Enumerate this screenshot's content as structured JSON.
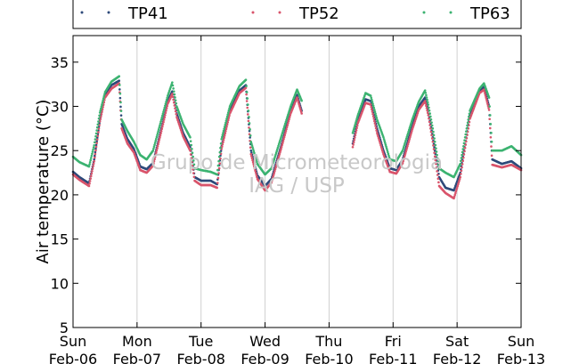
{
  "watermark": {
    "line1": "Grupo de Micrometeorologia",
    "line2": "IAG / USP"
  },
  "chart_data": {
    "type": "scatter",
    "title": "",
    "xlabel": "",
    "ylabel": "Air temperature (°C)",
    "ylim": [
      5,
      38
    ],
    "yticks": [
      5,
      10,
      15,
      20,
      25,
      30,
      35
    ],
    "xlim_days": [
      0,
      7
    ],
    "xticks": [
      {
        "day": "Sun",
        "date": "Feb-06"
      },
      {
        "day": "Mon",
        "date": "Feb-07"
      },
      {
        "day": "Tue",
        "date": "Feb-08"
      },
      {
        "day": "Wed",
        "date": "Feb-09"
      },
      {
        "day": "Thu",
        "date": "Feb-10"
      },
      {
        "day": "Fri",
        "date": "Feb-11"
      },
      {
        "day": "Sat",
        "date": "Feb-12"
      },
      {
        "day": "Sun",
        "date": "Feb-13"
      }
    ],
    "grid": "vertical",
    "legend_position": "top",
    "series": [
      {
        "name": "TP41",
        "color": "#2e4a7a",
        "points": [
          [
            0.0,
            22.6
          ],
          [
            0.1,
            22.0
          ],
          [
            0.25,
            21.3
          ],
          [
            0.33,
            24.0
          ],
          [
            0.42,
            28.5
          ],
          [
            0.5,
            31.3
          ],
          [
            0.6,
            32.4
          ],
          [
            0.72,
            32.9
          ],
          [
            0.76,
            28.0
          ],
          [
            0.85,
            26.3
          ],
          [
            0.95,
            25.2
          ],
          [
            1.05,
            23.2
          ],
          [
            1.15,
            22.9
          ],
          [
            1.25,
            23.6
          ],
          [
            1.38,
            27.5
          ],
          [
            1.48,
            30.6
          ],
          [
            1.55,
            31.7
          ],
          [
            1.62,
            29.2
          ],
          [
            1.72,
            27.0
          ],
          [
            1.83,
            25.4
          ],
          [
            1.9,
            22.0
          ],
          [
            2.0,
            21.6
          ],
          [
            2.15,
            21.6
          ],
          [
            2.25,
            21.2
          ],
          [
            2.32,
            25.5
          ],
          [
            2.45,
            29.5
          ],
          [
            2.6,
            31.8
          ],
          [
            2.7,
            32.4
          ],
          [
            2.78,
            25.0
          ],
          [
            2.88,
            22.2
          ],
          [
            3.0,
            21.0
          ],
          [
            3.1,
            21.8
          ],
          [
            3.25,
            25.5
          ],
          [
            3.4,
            29.5
          ],
          [
            3.5,
            31.3
          ],
          [
            3.58,
            29.3
          ],
          [
            4.37,
            25.8
          ],
          [
            4.45,
            28.5
          ],
          [
            4.57,
            30.8
          ],
          [
            4.65,
            30.6
          ],
          [
            4.75,
            27.5
          ],
          [
            4.85,
            25.0
          ],
          [
            4.95,
            23.0
          ],
          [
            5.05,
            22.8
          ],
          [
            5.15,
            24.0
          ],
          [
            5.3,
            27.8
          ],
          [
            5.4,
            30.0
          ],
          [
            5.5,
            31.0
          ],
          [
            5.55,
            29.5
          ],
          [
            5.62,
            26.5
          ],
          [
            5.72,
            22.0
          ],
          [
            5.82,
            20.8
          ],
          [
            5.95,
            20.5
          ],
          [
            6.05,
            22.5
          ],
          [
            6.2,
            29.0
          ],
          [
            6.35,
            31.8
          ],
          [
            6.42,
            32.2
          ],
          [
            6.5,
            30.0
          ],
          [
            6.55,
            24.0
          ],
          [
            6.7,
            23.5
          ],
          [
            6.85,
            23.8
          ],
          [
            7.0,
            23.0
          ]
        ]
      },
      {
        "name": "TP52",
        "color": "#d9546b",
        "points": [
          [
            0.0,
            22.3
          ],
          [
            0.1,
            21.7
          ],
          [
            0.25,
            21.0
          ],
          [
            0.33,
            23.8
          ],
          [
            0.42,
            28.3
          ],
          [
            0.5,
            31.0
          ],
          [
            0.6,
            32.0
          ],
          [
            0.72,
            32.6
          ],
          [
            0.76,
            27.5
          ],
          [
            0.85,
            25.8
          ],
          [
            0.95,
            24.8
          ],
          [
            1.05,
            22.8
          ],
          [
            1.15,
            22.5
          ],
          [
            1.25,
            23.3
          ],
          [
            1.38,
            27.2
          ],
          [
            1.48,
            30.3
          ],
          [
            1.55,
            31.4
          ],
          [
            1.62,
            28.8
          ],
          [
            1.72,
            26.6
          ],
          [
            1.83,
            25.0
          ],
          [
            1.9,
            21.6
          ],
          [
            2.0,
            21.1
          ],
          [
            2.15,
            21.1
          ],
          [
            2.25,
            20.8
          ],
          [
            2.32,
            25.2
          ],
          [
            2.45,
            29.2
          ],
          [
            2.6,
            31.5
          ],
          [
            2.7,
            32.1
          ],
          [
            2.78,
            24.6
          ],
          [
            2.88,
            21.8
          ],
          [
            3.0,
            20.5
          ],
          [
            3.1,
            21.4
          ],
          [
            3.25,
            25.2
          ],
          [
            3.4,
            29.2
          ],
          [
            3.5,
            31.0
          ],
          [
            3.58,
            29.0
          ],
          [
            4.37,
            25.4
          ],
          [
            4.45,
            28.1
          ],
          [
            4.57,
            30.4
          ],
          [
            4.65,
            30.2
          ],
          [
            4.75,
            27.0
          ],
          [
            4.85,
            24.6
          ],
          [
            4.95,
            22.6
          ],
          [
            5.05,
            22.4
          ],
          [
            5.15,
            23.6
          ],
          [
            5.3,
            27.4
          ],
          [
            5.4,
            29.6
          ],
          [
            5.5,
            30.6
          ],
          [
            5.55,
            29.0
          ],
          [
            5.62,
            26.0
          ],
          [
            5.72,
            21.0
          ],
          [
            5.82,
            20.2
          ],
          [
            5.95,
            19.6
          ],
          [
            6.05,
            22.0
          ],
          [
            6.2,
            28.6
          ],
          [
            6.35,
            31.5
          ],
          [
            6.42,
            31.9
          ],
          [
            6.5,
            29.6
          ],
          [
            6.55,
            23.4
          ],
          [
            6.7,
            23.1
          ],
          [
            6.85,
            23.4
          ],
          [
            7.0,
            22.8
          ]
        ]
      },
      {
        "name": "TP63",
        "color": "#3cb371",
        "points": [
          [
            0.0,
            24.3
          ],
          [
            0.1,
            23.7
          ],
          [
            0.25,
            23.2
          ],
          [
            0.33,
            25.6
          ],
          [
            0.42,
            29.3
          ],
          [
            0.5,
            31.6
          ],
          [
            0.6,
            32.8
          ],
          [
            0.72,
            33.4
          ],
          [
            0.76,
            28.5
          ],
          [
            0.85,
            27.2
          ],
          [
            0.95,
            26.0
          ],
          [
            1.05,
            24.5
          ],
          [
            1.15,
            24.0
          ],
          [
            1.25,
            25.0
          ],
          [
            1.38,
            28.5
          ],
          [
            1.48,
            31.2
          ],
          [
            1.55,
            32.7
          ],
          [
            1.62,
            30.0
          ],
          [
            1.72,
            28.0
          ],
          [
            1.83,
            26.5
          ],
          [
            1.9,
            23.0
          ],
          [
            2.0,
            22.8
          ],
          [
            2.15,
            22.6
          ],
          [
            2.25,
            22.3
          ],
          [
            2.32,
            26.3
          ],
          [
            2.45,
            30.0
          ],
          [
            2.6,
            32.3
          ],
          [
            2.7,
            33.0
          ],
          [
            2.78,
            26.0
          ],
          [
            2.88,
            23.5
          ],
          [
            3.0,
            22.3
          ],
          [
            3.1,
            23.0
          ],
          [
            3.25,
            26.5
          ],
          [
            3.4,
            30.0
          ],
          [
            3.5,
            31.9
          ],
          [
            3.58,
            30.5
          ],
          [
            4.37,
            27.0
          ],
          [
            4.45,
            29.0
          ],
          [
            4.57,
            31.5
          ],
          [
            4.65,
            31.2
          ],
          [
            4.75,
            28.5
          ],
          [
            4.85,
            26.5
          ],
          [
            4.95,
            24.0
          ],
          [
            5.05,
            23.8
          ],
          [
            5.15,
            25.0
          ],
          [
            5.3,
            28.5
          ],
          [
            5.4,
            30.5
          ],
          [
            5.5,
            31.8
          ],
          [
            5.55,
            30.2
          ],
          [
            5.62,
            27.5
          ],
          [
            5.72,
            23.0
          ],
          [
            5.82,
            22.5
          ],
          [
            5.95,
            22.0
          ],
          [
            6.05,
            23.5
          ],
          [
            6.2,
            29.5
          ],
          [
            6.35,
            32.0
          ],
          [
            6.42,
            32.6
          ],
          [
            6.5,
            31.0
          ],
          [
            6.55,
            25.0
          ],
          [
            6.7,
            25.0
          ],
          [
            6.85,
            25.5
          ],
          [
            7.0,
            24.5
          ]
        ]
      }
    ]
  }
}
